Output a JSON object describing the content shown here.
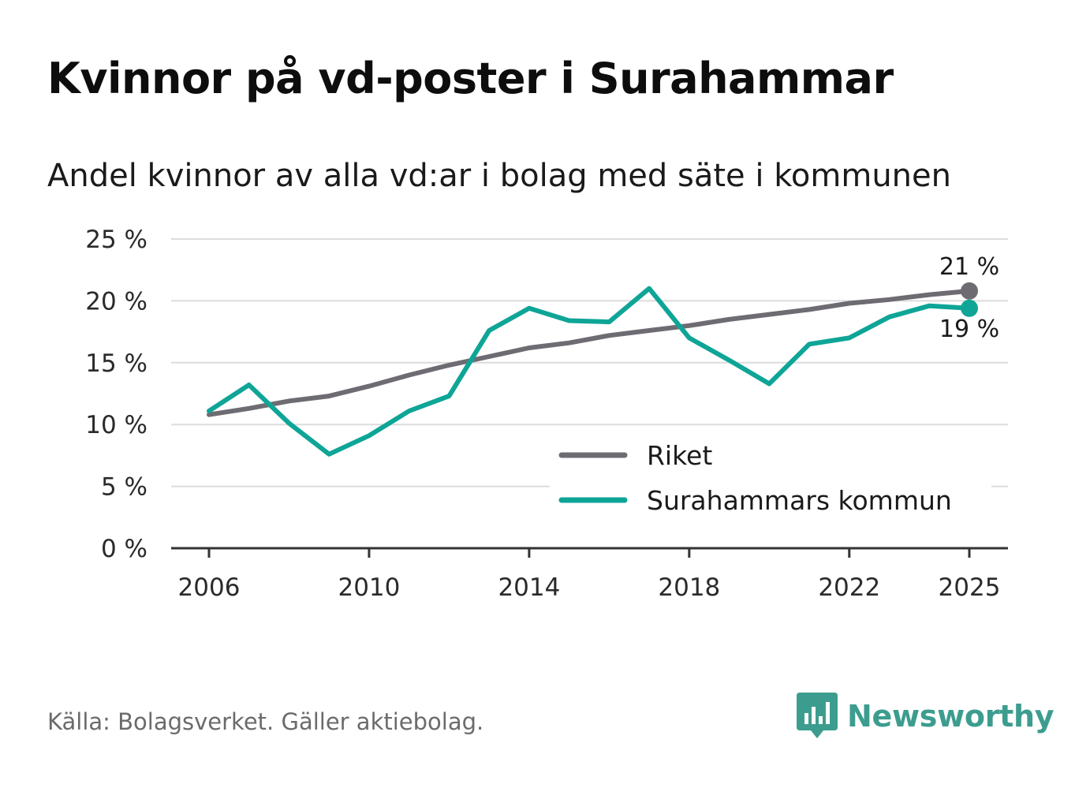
{
  "header": {
    "title": "Kvinnor på vd-poster i Surahammar",
    "subtitle": "Andel kvinnor av alla vd:ar i bolag med säte i kommunen"
  },
  "footer": {
    "source": "Källa: Bolagsverket. Gäller aktiebolag.",
    "brand": "Newsworthy"
  },
  "colors": {
    "riket": "#6e6c72",
    "kommun": "#0ea597",
    "grid": "#dcdcdc",
    "axis": "#333333",
    "brand": "#3c9d8f"
  },
  "chart_data": {
    "type": "line",
    "title": "Kvinnor på vd-poster i Surahammar",
    "subtitle": "Andel kvinnor av alla vd:ar i bolag med säte i kommunen",
    "xlabel": "",
    "ylabel": "",
    "xlim": [
      2006,
      2025
    ],
    "ylim": [
      0,
      25
    ],
    "x_ticks": [
      2006,
      2010,
      2014,
      2018,
      2022,
      2025
    ],
    "x_tick_labels": [
      "2006",
      "2010",
      "2014",
      "2018",
      "2022",
      "2025"
    ],
    "y_ticks": [
      0,
      5,
      10,
      15,
      20,
      25
    ],
    "y_tick_labels": [
      "0 %",
      "5 %",
      "10 %",
      "15 %",
      "20 %",
      "25 %"
    ],
    "grid": true,
    "legend_position": "bottom-right",
    "x": [
      2006,
      2007,
      2008,
      2009,
      2010,
      2011,
      2012,
      2013,
      2014,
      2015,
      2016,
      2017,
      2018,
      2019,
      2020,
      2021,
      2022,
      2023,
      2024,
      2025
    ],
    "series": [
      {
        "name": "Riket",
        "color": "#6e6c72",
        "values": [
          10.8,
          11.3,
          11.9,
          12.3,
          13.1,
          14.0,
          14.8,
          15.5,
          16.2,
          16.6,
          17.2,
          17.6,
          18.0,
          18.5,
          18.9,
          19.3,
          19.8,
          20.1,
          20.5,
          20.8
        ],
        "end_label": "21 %"
      },
      {
        "name": "Surahammars kommun",
        "color": "#0ea597",
        "values": [
          11.1,
          13.2,
          10.1,
          7.6,
          9.1,
          11.1,
          12.3,
          17.6,
          19.4,
          18.4,
          18.3,
          21.0,
          17.0,
          15.2,
          13.3,
          16.5,
          17.0,
          18.7,
          19.6,
          19.4
        ],
        "end_label": "19 %"
      }
    ]
  }
}
